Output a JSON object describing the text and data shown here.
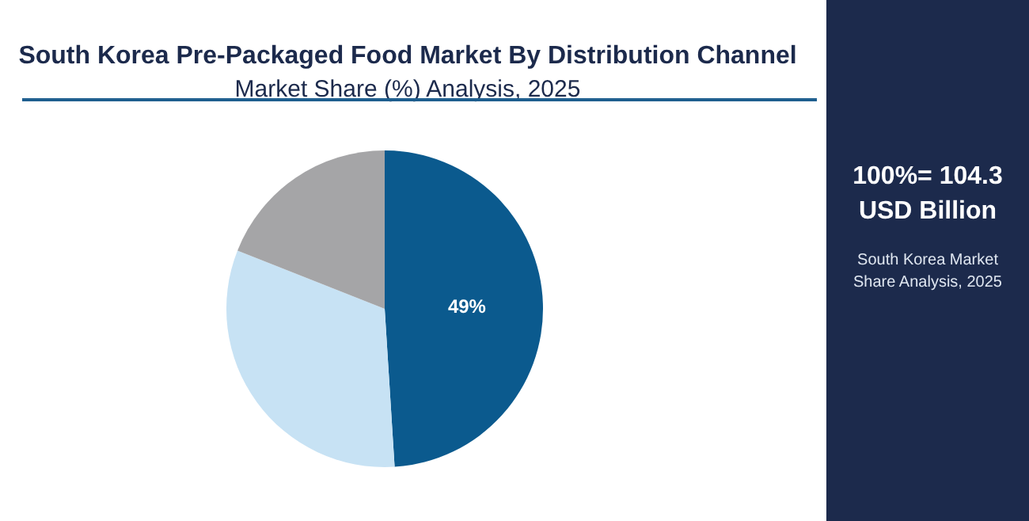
{
  "chart_data": {
    "type": "pie",
    "title": "South Korea Pre-Packaged Food Market By Distribution Channel",
    "subtitle": "Market Share (%) Analysis, 2025",
    "categories": [
      null,
      null,
      null
    ],
    "values": [
      49,
      32,
      19
    ],
    "colors": [
      "#0b5a8e",
      "#c7e2f4",
      "#a5a5a7"
    ],
    "value_labels": [
      "49%",
      null,
      null
    ],
    "annotations": [
      "100%= 104.3 USD Billion",
      "South Korea Market Share Analysis, 2025"
    ]
  }
}
